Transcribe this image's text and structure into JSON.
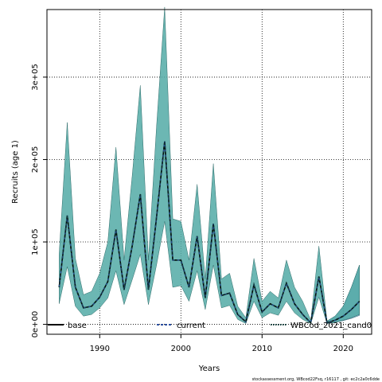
{
  "chart_data": {
    "type": "line",
    "title": "",
    "xlabel": "Years",
    "ylabel": "Recruits (age 1)",
    "xlim": [
      1983.5,
      2023.5
    ],
    "ylim": [
      -12000,
      382000
    ],
    "x_ticks": [
      1990,
      2000,
      2010,
      2020
    ],
    "x_tick_labels": [
      "1990",
      "2000",
      "2010",
      "2020"
    ],
    "y_ticks": [
      0,
      100000,
      200000,
      300000
    ],
    "y_tick_labels": [
      "0e+00",
      "1e+05",
      "2e+05",
      "3e+05"
    ],
    "grid": true,
    "legend_position": "bottom",
    "legend": [
      {
        "name": "base",
        "style": "solid"
      },
      {
        "name": "current",
        "style": "dashed"
      },
      {
        "name": "WBCod_2021_cand0",
        "style": "dotted"
      }
    ],
    "series": [
      {
        "name": "WBCod_2021_cand0",
        "x": [
          1985,
          1986,
          1987,
          1988,
          1989,
          1990,
          1991,
          1992,
          1993,
          1994,
          1995,
          1996,
          1997,
          1998,
          1999,
          2000,
          2001,
          2002,
          2003,
          2004,
          2005,
          2006,
          2007,
          2008,
          2009,
          2010,
          2011,
          2012,
          2013,
          2014,
          2015,
          2016,
          2017,
          2018,
          2019,
          2020,
          2021,
          2022
        ],
        "values": [
          45000,
          132000,
          45000,
          20000,
          22000,
          33000,
          52000,
          115000,
          42000,
          95000,
          158000,
          42000,
          130000,
          222000,
          78000,
          78000,
          45000,
          107000,
          32000,
          122000,
          35000,
          38000,
          12000,
          3000,
          48000,
          15000,
          25000,
          20000,
          50000,
          25000,
          12000,
          2000,
          58000,
          2000,
          5000,
          10000,
          18000,
          28000
        ],
        "lower": [
          25000,
          70000,
          22000,
          10000,
          12000,
          20000,
          32000,
          65000,
          24000,
          54000,
          85000,
          24000,
          72000,
          125000,
          45000,
          47000,
          28000,
          65000,
          18000,
          72000,
          20000,
          23000,
          6000,
          1000,
          28000,
          8000,
          14000,
          11000,
          28000,
          14000,
          6000,
          1000,
          33000,
          1000,
          2500,
          5000,
          8000,
          12000
        ],
        "upper": [
          85000,
          245000,
          80000,
          36000,
          40000,
          62000,
          100000,
          215000,
          78000,
          180000,
          290000,
          78000,
          240000,
          385000,
          128000,
          125000,
          78000,
          170000,
          55000,
          195000,
          55000,
          62000,
          22000,
          8000,
          80000,
          28000,
          40000,
          32000,
          78000,
          45000,
          28000,
          5000,
          95000,
          4000,
          10000,
          22000,
          45000,
          72000
        ]
      }
    ]
  },
  "footnote": "stockassessment.org, WBcod22Fsq, r16117 , git: ec2c2a0c6dde"
}
